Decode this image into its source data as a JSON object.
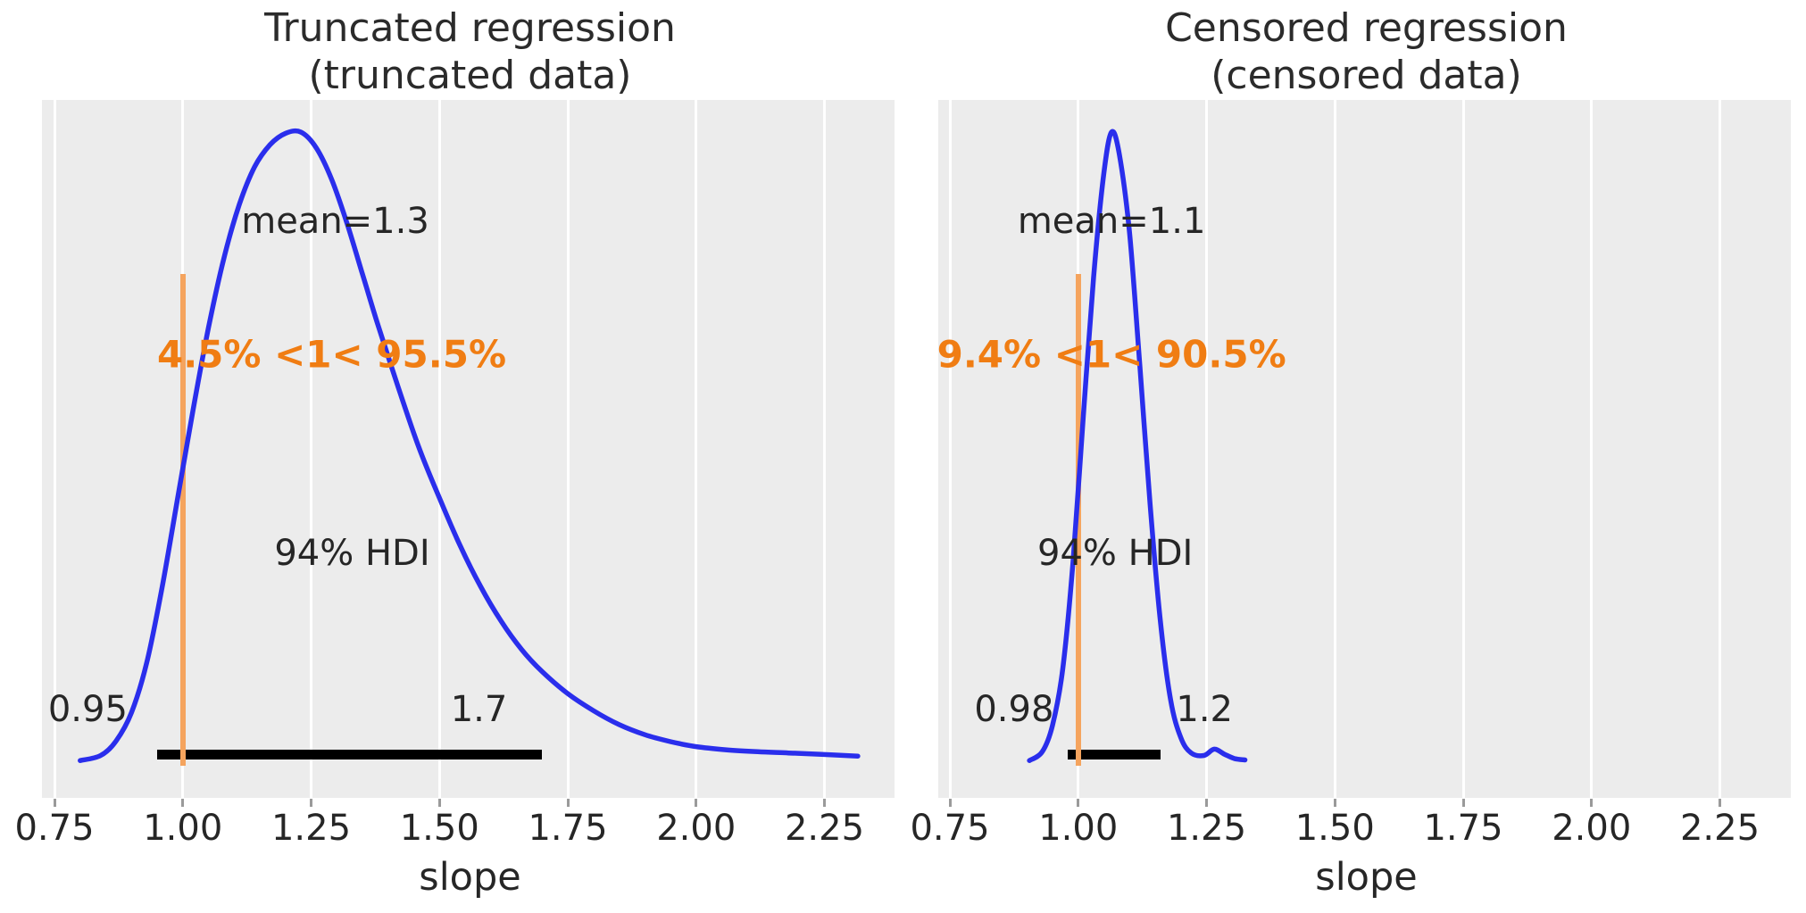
{
  "figure": {
    "background": "#ffffff",
    "panel_background": "#ececec",
    "gridline_color": "#ffffff",
    "text_color": "#262626",
    "curve_color": "#2a2eec",
    "ref_line_color": "#f5a45e",
    "ref_text_color": "#f07d13",
    "hdi_bar_color": "#000000",
    "tick_color": "#9a9a9a"
  },
  "chart_data": [
    {
      "type": "line",
      "title": "Truncated regression\n(truncated data)",
      "xlabel": "slope",
      "x_ticks": [
        0.75,
        1.0,
        1.25,
        1.5,
        1.75,
        2.0,
        2.25
      ],
      "x_tick_labels": [
        "0.75",
        "1.00",
        "1.25",
        "1.50",
        "1.75",
        "2.00",
        "2.25"
      ],
      "xlim": [
        0.726,
        2.386
      ],
      "grid": true,
      "legend": false,
      "mean": 1.3,
      "mean_label": "mean=1.3",
      "ref_value": 1,
      "ref_label": "4.5% <1< 95.5%",
      "hdi_label": "94% HDI",
      "hdi_lower": 0.95,
      "hdi_upper": 1.7,
      "hdi_lower_label": "0.95",
      "hdi_upper_label": "1.7",
      "curve": [
        [
          0.8,
          0.004
        ],
        [
          0.84,
          0.012
        ],
        [
          0.87,
          0.035
        ],
        [
          0.9,
          0.08
        ],
        [
          0.93,
          0.16
        ],
        [
          0.96,
          0.28
        ],
        [
          0.99,
          0.42
        ],
        [
          1.02,
          0.56
        ],
        [
          1.05,
          0.69
        ],
        [
          1.08,
          0.8
        ],
        [
          1.11,
          0.885
        ],
        [
          1.14,
          0.945
        ],
        [
          1.17,
          0.98
        ],
        [
          1.2,
          0.998
        ],
        [
          1.23,
          1.0
        ],
        [
          1.26,
          0.975
        ],
        [
          1.29,
          0.925
        ],
        [
          1.32,
          0.855
        ],
        [
          1.35,
          0.775
        ],
        [
          1.38,
          0.695
        ],
        [
          1.42,
          0.595
        ],
        [
          1.46,
          0.5
        ],
        [
          1.5,
          0.42
        ],
        [
          1.54,
          0.345
        ],
        [
          1.58,
          0.28
        ],
        [
          1.62,
          0.225
        ],
        [
          1.66,
          0.18
        ],
        [
          1.7,
          0.145
        ],
        [
          1.75,
          0.11
        ],
        [
          1.8,
          0.083
        ],
        [
          1.85,
          0.061
        ],
        [
          1.9,
          0.045
        ],
        [
          1.95,
          0.034
        ],
        [
          2.0,
          0.026
        ],
        [
          2.06,
          0.021
        ],
        [
          2.12,
          0.018
        ],
        [
          2.18,
          0.016
        ],
        [
          2.24,
          0.014
        ],
        [
          2.315,
          0.011
        ]
      ],
      "labels_pos": {
        "mean": [
          1.297,
          248
        ],
        "ref": [
          1.29,
          397
        ],
        "hdi": [
          1.33,
          620
        ],
        "lo": [
          0.815,
          795
        ],
        "hi": [
          1.577,
          795
        ]
      }
    },
    {
      "type": "line",
      "title": "Censored regression\n(censored data)",
      "xlabel": "slope",
      "x_ticks": [
        0.75,
        1.0,
        1.25,
        1.5,
        1.75,
        2.0,
        2.25
      ],
      "x_tick_labels": [
        "0.75",
        "1.00",
        "1.25",
        "1.50",
        "1.75",
        "2.00",
        "2.25"
      ],
      "xlim": [
        0.726,
        2.386
      ],
      "grid": true,
      "legend": false,
      "mean": 1.1,
      "mean_label": "mean=1.1",
      "ref_value": 1,
      "ref_label": "9.4% <1< 90.5%",
      "hdi_label": "94% HDI",
      "hdi_lower": 0.98,
      "hdi_upper": 1.16,
      "hdi_lower_label": "0.98",
      "hdi_upper_label": "1.2",
      "curve": [
        [
          0.905,
          0.004
        ],
        [
          0.93,
          0.018
        ],
        [
          0.95,
          0.06
        ],
        [
          0.97,
          0.15
        ],
        [
          0.99,
          0.32
        ],
        [
          1.01,
          0.55
        ],
        [
          1.03,
          0.77
        ],
        [
          1.05,
          0.935
        ],
        [
          1.065,
          1.0
        ],
        [
          1.08,
          0.965
        ],
        [
          1.1,
          0.84
        ],
        [
          1.12,
          0.63
        ],
        [
          1.14,
          0.41
        ],
        [
          1.16,
          0.225
        ],
        [
          1.18,
          0.1
        ],
        [
          1.2,
          0.04
        ],
        [
          1.22,
          0.016
        ],
        [
          1.245,
          0.012
        ],
        [
          1.265,
          0.022
        ],
        [
          1.285,
          0.014
        ],
        [
          1.305,
          0.007
        ],
        [
          1.325,
          0.005
        ]
      ],
      "labels_pos": {
        "mean": [
          1.065,
          248
        ],
        "ref": [
          1.065,
          397
        ],
        "hdi": [
          1.072,
          620
        ],
        "lo": [
          0.875,
          795
        ],
        "hi": [
          1.246,
          795
        ]
      }
    }
  ]
}
